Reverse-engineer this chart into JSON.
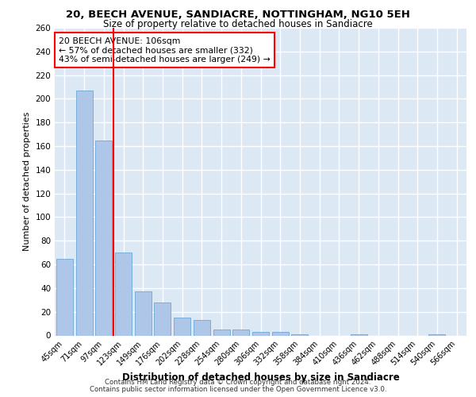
{
  "title1": "20, BEECH AVENUE, SANDIACRE, NOTTINGHAM, NG10 5EH",
  "title2": "Size of property relative to detached houses in Sandiacre",
  "xlabel": "Distribution of detached houses by size in Sandiacre",
  "ylabel": "Number of detached properties",
  "categories": [
    "45sqm",
    "71sqm",
    "97sqm",
    "123sqm",
    "149sqm",
    "176sqm",
    "202sqm",
    "228sqm",
    "254sqm",
    "280sqm",
    "306sqm",
    "332sqm",
    "358sqm",
    "384sqm",
    "410sqm",
    "436sqm",
    "462sqm",
    "488sqm",
    "514sqm",
    "540sqm",
    "566sqm"
  ],
  "values": [
    65,
    207,
    165,
    70,
    37,
    28,
    15,
    13,
    5,
    5,
    3,
    3,
    1,
    0,
    0,
    1,
    0,
    0,
    0,
    1,
    0
  ],
  "bar_color": "#aec6e8",
  "bar_edge_color": "#5a9fd4",
  "background_color": "#dde8f5",
  "grid_color": "#ffffff",
  "annotation_title": "20 BEECH AVENUE: 106sqm",
  "annotation_line1": "← 57% of detached houses are smaller (332)",
  "annotation_line2": "43% of semi-detached houses are larger (249) →",
  "footer1": "Contains HM Land Registry data © Crown copyright and database right 2024.",
  "footer2": "Contains public sector information licensed under the Open Government Licence v3.0.",
  "ylim": [
    0,
    260
  ],
  "yticks": [
    0,
    20,
    40,
    60,
    80,
    100,
    120,
    140,
    160,
    180,
    200,
    220,
    240,
    260
  ],
  "red_line_index": 2
}
